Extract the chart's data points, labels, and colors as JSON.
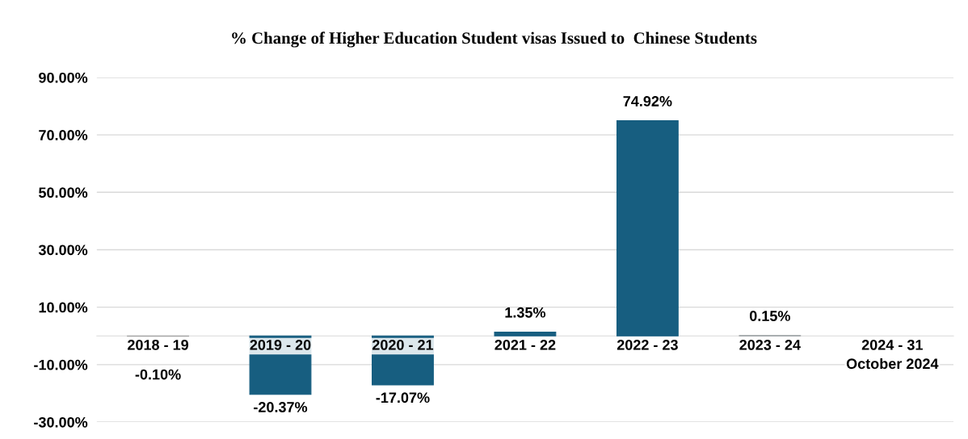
{
  "chart_data": {
    "type": "bar",
    "title": "% Change of Higher Education Student visas Issued to  Chinese Students",
    "categories": [
      "2018 - 19",
      "2019 - 20",
      "2020 - 21",
      "2021 - 22",
      "2022 - 23",
      "2023 - 24",
      "2024 - 31\nOctober 2024"
    ],
    "values": [
      -0.1,
      -20.37,
      -17.07,
      1.35,
      74.92,
      0.15,
      null
    ],
    "value_labels": [
      "-0.10%",
      "-20.37%",
      "-17.07%",
      "1.35%",
      "74.92%",
      "0.15%",
      null
    ],
    "color": "#175e80",
    "ylim": [
      -30,
      90
    ],
    "yticks": [
      {
        "value": -30,
        "label": "-30.00%"
      },
      {
        "value": -10,
        "label": "-10.00%"
      },
      {
        "value": 10,
        "label": "10.00%"
      },
      {
        "value": 30,
        "label": "30.00%"
      },
      {
        "value": 50,
        "label": "50.00%"
      },
      {
        "value": 70,
        "label": "70.00%"
      },
      {
        "value": 90,
        "label": "90.00%"
      }
    ],
    "grid": "y",
    "legend": false
  }
}
